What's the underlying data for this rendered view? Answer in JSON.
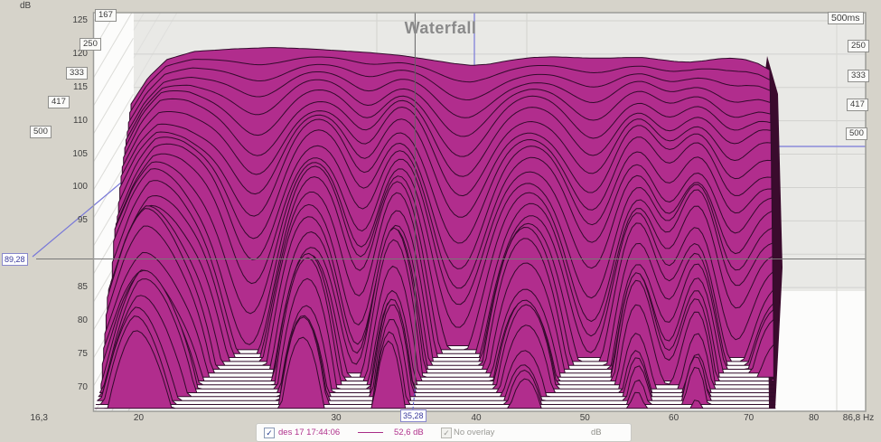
{
  "title": "Waterfall",
  "y_axis": {
    "unit": "dB",
    "ticks": [
      "125",
      "120",
      "115",
      "110",
      "105",
      "100",
      "95",
      "85",
      "80",
      "75",
      "70"
    ],
    "tick_values": [
      125,
      120,
      115,
      110,
      105,
      100,
      95,
      85,
      80,
      75,
      70
    ]
  },
  "x_axis": {
    "ticks": [
      "16,3",
      "20",
      "30",
      "40",
      "50",
      "60",
      "70",
      "80"
    ],
    "tick_values": [
      16.3,
      20,
      30,
      40,
      50,
      60,
      70,
      80
    ],
    "end_label": "86,8 Hz",
    "end_value": 86.8
  },
  "time_axis": {
    "unit_label": "500ms",
    "left_labels": [
      "167",
      "250",
      "333",
      "417",
      "500"
    ],
    "right_labels": [
      "250",
      "333",
      "417",
      "500"
    ]
  },
  "cursor": {
    "db_label": "89,28",
    "freq_label": "35,28",
    "db": 89.28,
    "freq_hz": 35.28,
    "value": "52,6 dB"
  },
  "legend": {
    "measurement_label": "des 17 17:44:06",
    "measurement_checked": true,
    "check_glyph": "✓",
    "value_label": "52,6 dB",
    "overlay_label": "No overlay",
    "overlay_checked": true,
    "unit_label": "dB"
  },
  "colors": {
    "surface": "#b12d8d",
    "surface_outline": "#330b2c",
    "surface_side": "#3a0b2d",
    "accent_blue": "#7878d8",
    "crosshair": "#787878",
    "grid": "#d2d2cf",
    "plot_gray": "#e9e9e6",
    "plot_white": "#fcfcfb",
    "hatch": "#dcdcd8",
    "border": "#9c9c98"
  },
  "chart_data": {
    "type": "waterfall",
    "title": "Waterfall",
    "measurement": "des 17 17:44:06",
    "x_axis": {
      "label": "Hz",
      "scale": "log",
      "range_hz": [
        16.3,
        86.8
      ],
      "ticks_hz": [
        16.3,
        20,
        30,
        40,
        50,
        60,
        70,
        80,
        86.8
      ]
    },
    "y_axis": {
      "label": "dB",
      "range_db": [
        70,
        125
      ],
      "tick_step_db": 5
    },
    "z_axis": {
      "label": "ms",
      "range_ms": [
        0,
        500
      ],
      "tick_labels_ms": [
        167,
        250,
        333,
        417,
        500
      ]
    },
    "legend_position": "bottom",
    "grid": true,
    "slices": 30,
    "floor_db": 83.9,
    "data_freq_range_hz": [
      18.3,
      73.9
    ],
    "cursor": {
      "freq_hz": 35.28,
      "db": 89.28,
      "value_db": 52.6
    },
    "base_response": {
      "freq_hz": [
        18.3,
        19,
        19.8,
        21,
        23,
        25,
        27,
        29,
        31,
        33,
        35,
        37,
        38.5,
        40,
        42,
        44,
        46,
        48,
        50,
        52,
        54,
        56,
        58,
        60,
        62,
        64,
        66,
        68,
        70,
        72,
        73.9
      ],
      "db": [
        112.5,
        116.5,
        119.2,
        120.4,
        120.8,
        121.0,
        120.8,
        120.5,
        120.2,
        119.8,
        119.2,
        118.6,
        118.3,
        118.5,
        119.1,
        119.5,
        119.6,
        119.5,
        119.4,
        119.4,
        119.5,
        119.5,
        119.2,
        118.9,
        118.8,
        119.0,
        119.3,
        119.4,
        119.2,
        118.6,
        117.6
      ]
    },
    "decay_db_per_slice": {
      "base": 1.5,
      "modifiers": [
        {
          "freq_hz": 19.8,
          "mult": 0.55,
          "width": 0.06
        },
        {
          "freq_hz": 24.5,
          "mult": 2.2,
          "width": 0.05
        },
        {
          "freq_hz": 28.0,
          "mult": 0.6,
          "width": 0.055
        },
        {
          "freq_hz": 31.0,
          "mult": 1.75,
          "width": 0.038
        },
        {
          "freq_hz": 33.5,
          "mult": 0.5,
          "width": 0.048
        },
        {
          "freq_hz": 37.8,
          "mult": 2.35,
          "width": 0.055
        },
        {
          "freq_hz": 44.0,
          "mult": 0.7,
          "width": 0.06
        },
        {
          "freq_hz": 50.5,
          "mult": 2.0,
          "width": 0.05
        },
        {
          "freq_hz": 55.5,
          "mult": 0.6,
          "width": 0.045
        },
        {
          "freq_hz": 59.5,
          "mult": 1.6,
          "width": 0.038
        },
        {
          "freq_hz": 63.0,
          "mult": 0.52,
          "width": 0.045
        },
        {
          "freq_hz": 67.5,
          "mult": 1.9,
          "width": 0.045
        },
        {
          "freq_hz": 71.5,
          "mult": 0.95,
          "width": 0.035
        }
      ],
      "time_curve": [
        0.55,
        0.45
      ]
    },
    "texture_ripple": [
      [
        0.055,
        9.2,
        0.95
      ],
      [
        0.045,
        15.5,
        -1.35
      ],
      [
        0.028,
        23.0,
        0.5
      ]
    ]
  }
}
